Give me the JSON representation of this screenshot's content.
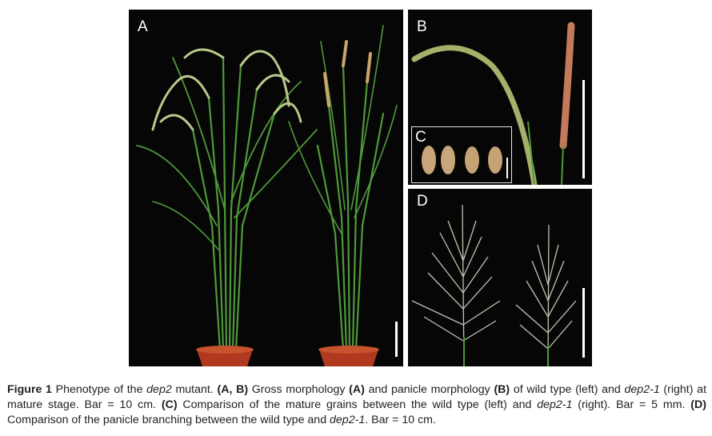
{
  "figure": {
    "panels": [
      {
        "label": "A",
        "content": "wild type and dep2-1 rice plants in pots"
      },
      {
        "label": "B",
        "content": "panicles of wild type and dep2-1"
      },
      {
        "label": "C",
        "content": "mature grains"
      },
      {
        "label": "D",
        "content": "panicle branching"
      }
    ],
    "colors": {
      "background": "#060606",
      "leaf": "#4f9a3a",
      "pot": "#b0391f",
      "scale_bar": "#ffffff"
    }
  },
  "caption": {
    "title": "Figure 1",
    "p1": " Phenotype of the ",
    "gene": "dep2",
    "p2": " mutant. ",
    "lab_ab": "(A, B)",
    "p3": " Gross morphology ",
    "lab_a": "(A)",
    "p4": " and panicle morphology ",
    "lab_b": "(B)",
    "p5": " of wild type (left) and ",
    "mutant1": "dep2-1",
    "p6": " (right) at mature stage. Bar = 10 cm. ",
    "lab_c": "(C)",
    "p7": " Comparison of the mature grains between the wild type (left) and ",
    "mutant2": "dep2-1",
    "p8": " (right). Bar = 5 mm. ",
    "lab_d": "(D)",
    "p9": " Comparison of the panicle branching between the wild type and ",
    "mutant3": "dep2-1",
    "p10": ". Bar = 10 cm."
  }
}
